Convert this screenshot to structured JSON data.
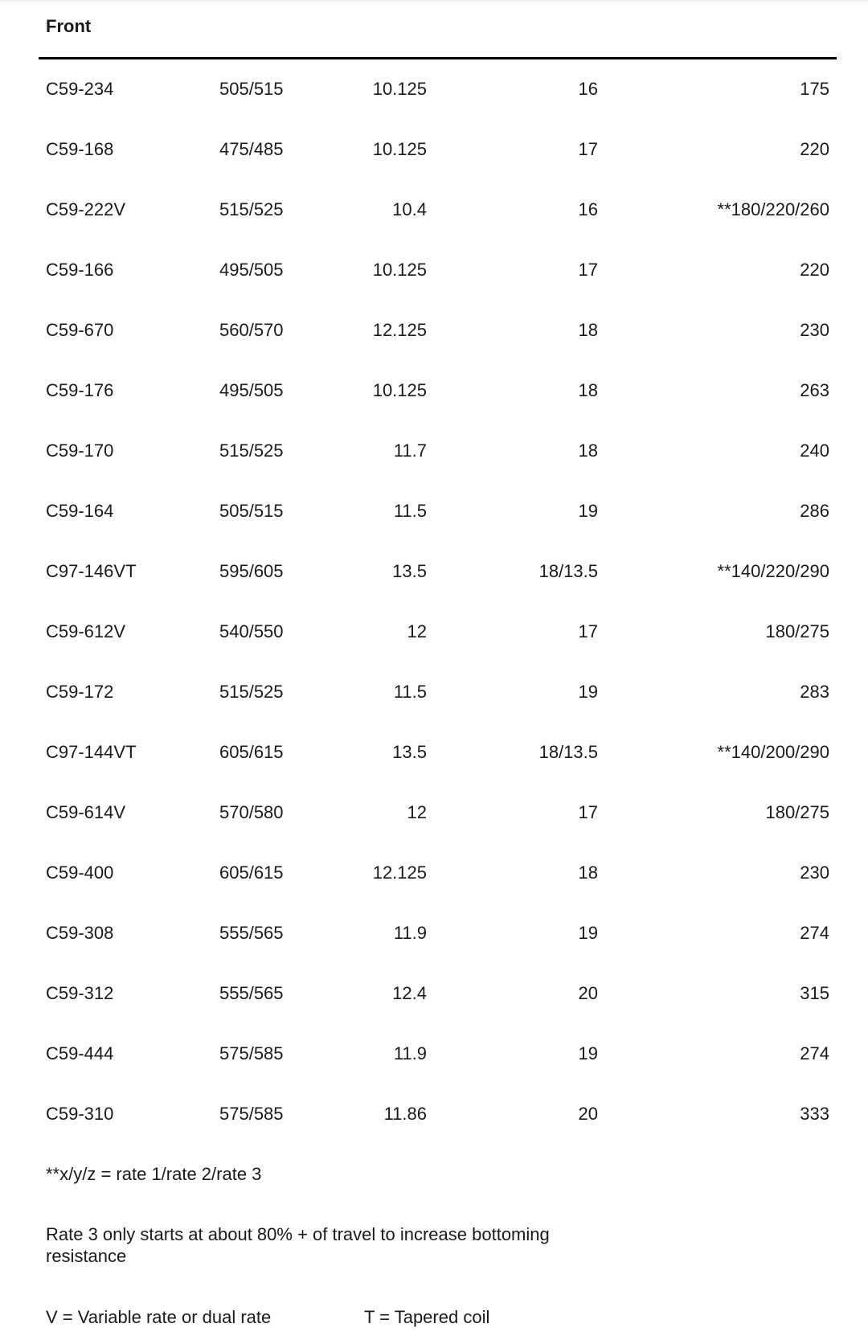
{
  "section_title": "Front",
  "rows": [
    [
      "C59-234",
      "505/515",
      "10.125",
      "16",
      "175"
    ],
    [
      "C59-168",
      "475/485",
      "10.125",
      "17",
      "220"
    ],
    [
      "C59-222V",
      "515/525",
      "10.4",
      "16",
      "**180/220/260"
    ],
    [
      "C59-166",
      "495/505",
      "10.125",
      "17",
      "220"
    ],
    [
      "C59-670",
      "560/570",
      "12.125",
      "18",
      "230"
    ],
    [
      "C59-176",
      "495/505",
      "10.125",
      "18",
      "263"
    ],
    [
      "C59-170",
      "515/525",
      "11.7",
      "18",
      "240"
    ],
    [
      "C59-164",
      "505/515",
      "11.5",
      "19",
      "286"
    ],
    [
      "C97-146VT",
      "595/605",
      "13.5",
      "18/13.5",
      "**140/220/290"
    ],
    [
      "C59-612V",
      "540/550",
      "12",
      "17",
      "180/275"
    ],
    [
      "C59-172",
      "515/525",
      "11.5",
      "19",
      "283"
    ],
    [
      "C97-144VT",
      "605/615",
      "13.5",
      "18/13.5",
      "**140/200/290"
    ],
    [
      "C59-614V",
      "570/580",
      "12",
      "17",
      "180/275"
    ],
    [
      "C59-400",
      "605/615",
      "12.125",
      "18",
      "230"
    ],
    [
      "C59-308",
      "555/565",
      "11.9",
      "19",
      "274"
    ],
    [
      "C59-312",
      "555/565",
      "12.4",
      "20",
      "315"
    ],
    [
      "C59-444",
      "575/585",
      "11.9",
      "19",
      "274"
    ],
    [
      "C59-310",
      "575/585",
      "11.86",
      "20",
      "333"
    ]
  ],
  "notes": {
    "rates": "**x/y/z = rate 1/rate 2/rate 3",
    "rate3": "Rate 3 only starts at about 80% + of travel to increase bottoming resistance",
    "variable": "V = Variable rate or dual rate",
    "tapered": "T = Tapered coil"
  }
}
